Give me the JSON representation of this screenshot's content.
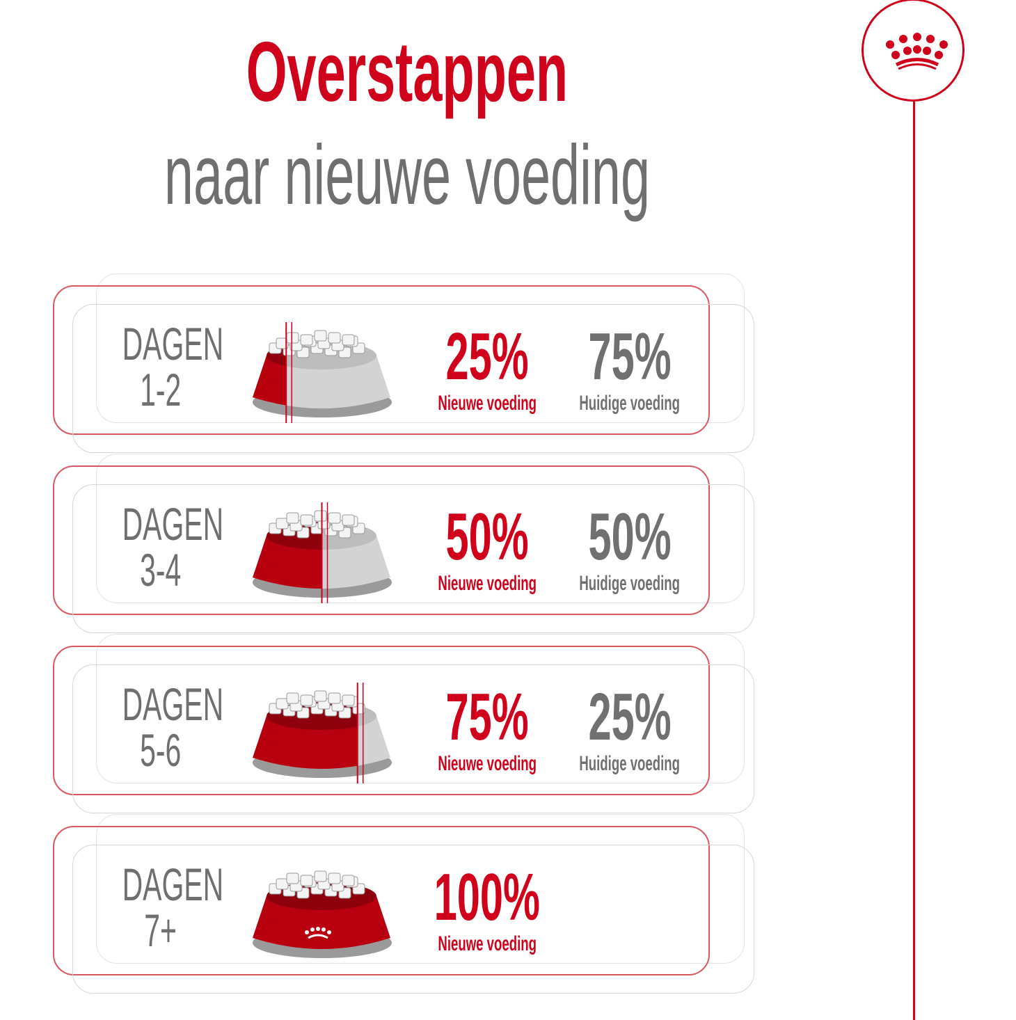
{
  "header": {
    "title": "Overstappen",
    "subtitle": "naar nieuwe voeding"
  },
  "colors": {
    "brand_red": "#d0021b",
    "gray": "#6f6f6f"
  },
  "logo": {
    "icon": "crown-icon"
  },
  "steps": [
    {
      "day_label": "DAGEN",
      "days": "1-2",
      "new_pct": "25%",
      "new_label": "Nieuwe voeding",
      "current_pct": "75%",
      "current_label": "Huidige voeding",
      "new_fraction": 0.25
    },
    {
      "day_label": "DAGEN",
      "days": "3-4",
      "new_pct": "50%",
      "new_label": "Nieuwe voeding",
      "current_pct": "50%",
      "current_label": "Huidige voeding",
      "new_fraction": 0.5
    },
    {
      "day_label": "DAGEN",
      "days": "5-6",
      "new_pct": "75%",
      "new_label": "Nieuwe voeding",
      "current_pct": "25%",
      "current_label": "Huidige voeding",
      "new_fraction": 0.75
    },
    {
      "day_label": "DAGEN",
      "days": "7+",
      "new_pct": "100%",
      "new_label": "Nieuwe voeding",
      "new_fraction": 1.0
    }
  ]
}
